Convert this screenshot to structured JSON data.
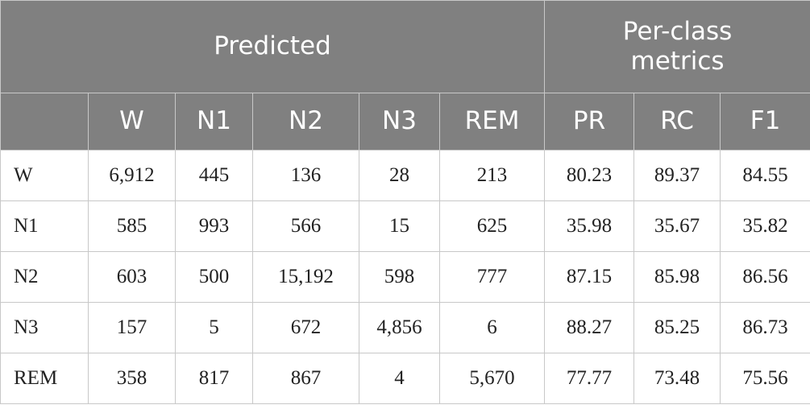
{
  "header": {
    "groups": [
      "Predicted",
      "Per-class metrics"
    ],
    "columns": [
      "W",
      "N1",
      "N2",
      "N3",
      "REM",
      "PR",
      "RC",
      "F1"
    ]
  },
  "table": {
    "rows": [
      [
        "W",
        "6,912",
        "445",
        "136",
        "28",
        "213",
        "80.23",
        "89.37",
        "84.55"
      ],
      [
        "N1",
        "585",
        "993",
        "566",
        "15",
        "625",
        "35.98",
        "35.67",
        "35.82"
      ],
      [
        "N2",
        "603",
        "500",
        "15,192",
        "598",
        "777",
        "87.15",
        "85.98",
        "86.56"
      ],
      [
        "N3",
        "157",
        "5",
        "672",
        "4,856",
        "6",
        "88.27",
        "85.25",
        "86.73"
      ],
      [
        "REM",
        "358",
        "817",
        "867",
        "4",
        "5,670",
        "77.77",
        "73.48",
        "75.56"
      ]
    ]
  }
}
